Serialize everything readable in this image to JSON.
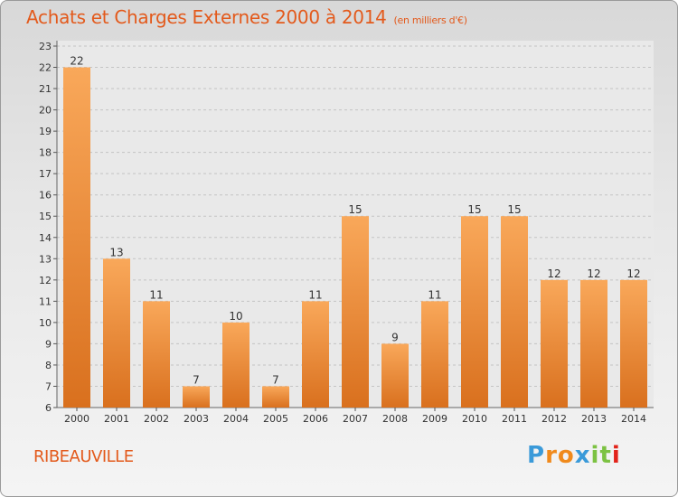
{
  "title": "Achats et Charges Externes 2000 à 2014",
  "unit": "(en milliers d'€)",
  "city": "RIBEAUVILLE",
  "logo": {
    "letters": [
      "P",
      "r",
      "o",
      "x",
      "i",
      "t",
      "i"
    ],
    "colors": [
      "#3a9ad9",
      "#f08a1c",
      "#f08a1c",
      "#3a9ad9",
      "#7cc242",
      "#7cc242",
      "#e2231a"
    ]
  },
  "colors": {
    "bar_light": "#f9a85a",
    "bar_dark": "#d9701e",
    "accent": "#e35a1c"
  },
  "chart_data": {
    "type": "bar",
    "categories": [
      "2000",
      "2001",
      "2002",
      "2003",
      "2004",
      "2005",
      "2006",
      "2007",
      "2008",
      "2009",
      "2010",
      "2011",
      "2012",
      "2013",
      "2014"
    ],
    "values": [
      22,
      13,
      11,
      7,
      10,
      7,
      11,
      15,
      9,
      11,
      15,
      15,
      12,
      12,
      12
    ],
    "ylim": [
      6,
      23
    ],
    "yticks": [
      6,
      7,
      8,
      9,
      10,
      11,
      12,
      13,
      14,
      15,
      16,
      17,
      18,
      19,
      20,
      21,
      22,
      23
    ],
    "grid": true
  }
}
